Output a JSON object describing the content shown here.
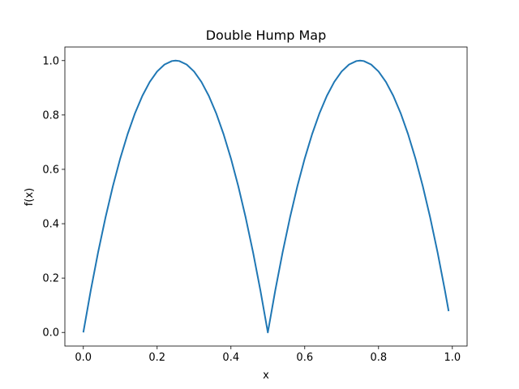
{
  "chart_data": {
    "type": "line",
    "title": "Double Hump Map",
    "xlabel": "x",
    "ylabel": "f(x)",
    "xlim": [
      -0.05,
      1.04
    ],
    "ylim": [
      -0.05,
      1.05
    ],
    "grid": false,
    "x_ticks": [
      0.0,
      0.2,
      0.4,
      0.6,
      0.8,
      1.0
    ],
    "x_tick_labels": [
      "0.0",
      "0.2",
      "0.4",
      "0.6",
      "0.8",
      "1.0"
    ],
    "y_ticks": [
      0.0,
      0.2,
      0.4,
      0.6,
      0.8,
      1.0
    ],
    "y_tick_labels": [
      "0.0",
      "0.2",
      "0.4",
      "0.6",
      "0.8",
      "1.0"
    ],
    "series": [
      {
        "color": "#1f77b4",
        "x": [
          0.0,
          0.02,
          0.04,
          0.06,
          0.08,
          0.1,
          0.12,
          0.14,
          0.16,
          0.18,
          0.2,
          0.22,
          0.24,
          0.25,
          0.26,
          0.28,
          0.3,
          0.32,
          0.34,
          0.36,
          0.38,
          0.4,
          0.42,
          0.44,
          0.46,
          0.48,
          0.5,
          0.52,
          0.54,
          0.56,
          0.58,
          0.6,
          0.62,
          0.64,
          0.66,
          0.68,
          0.7,
          0.72,
          0.74,
          0.75,
          0.76,
          0.78,
          0.8,
          0.82,
          0.84,
          0.86,
          0.88,
          0.9,
          0.92,
          0.94,
          0.96,
          0.98,
          0.99
        ],
        "y": [
          0.0,
          0.1536,
          0.2944,
          0.4224,
          0.5376,
          0.64,
          0.7296,
          0.8064,
          0.8704,
          0.9216,
          0.96,
          0.9856,
          0.9984,
          1.0,
          0.9984,
          0.9856,
          0.96,
          0.9216,
          0.8704,
          0.8064,
          0.7296,
          0.64,
          0.5376,
          0.4224,
          0.2944,
          0.1536,
          0.0,
          0.1536,
          0.2944,
          0.4224,
          0.5376,
          0.64,
          0.7296,
          0.8064,
          0.8704,
          0.9216,
          0.96,
          0.9856,
          0.9984,
          1.0,
          0.9984,
          0.9856,
          0.96,
          0.9216,
          0.8704,
          0.8064,
          0.7296,
          0.64,
          0.5376,
          0.4224,
          0.2944,
          0.1536,
          0.0784
        ]
      }
    ]
  }
}
